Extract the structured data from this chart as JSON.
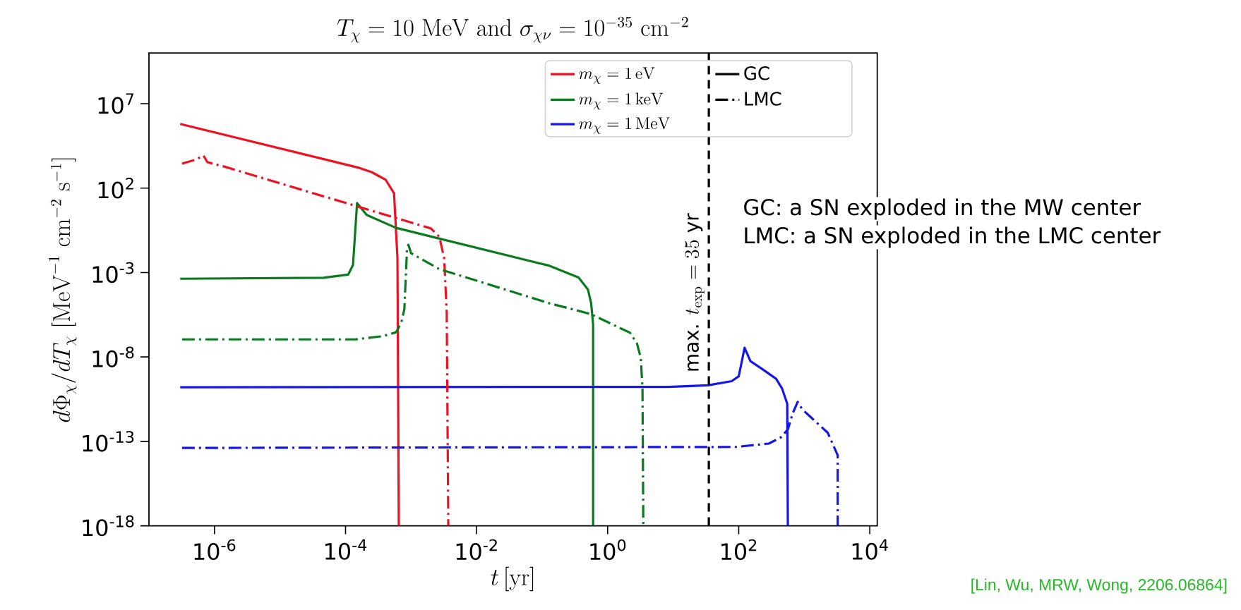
{
  "chart_data": {
    "type": "line",
    "title": "T_\\chi = 10\\ \\mathrm{MeV}\\ \\mathrm{and}\\ \\sigma_{\\chi\\nu} = 10^{-35}\\ \\mathrm{cm}^{-2}",
    "xlabel": "t\\,[\\mathrm{yr}]",
    "ylabel": "d\\Phi_\\chi/dT_\\chi\\ [\\mathrm{MeV}^{-1}\\ \\mathrm{cm}^{-2}\\ \\mathrm{s}^{-1}]",
    "log": "xy",
    "xlim": [
      1e-07,
      13000
    ],
    "ylim": [
      1e-18,
      10000000000.0
    ],
    "xticks": [
      {
        "value": 1e-06,
        "label": "10$^{-6}$"
      },
      {
        "value": 0.0001,
        "label": "10$^{-4}$"
      },
      {
        "value": 0.01,
        "label": "10$^{-2}$"
      },
      {
        "value": 1,
        "label": "10$^{0}$"
      },
      {
        "value": 100,
        "label": "10$^{2}$"
      },
      {
        "value": 10000,
        "label": "10$^{4}$"
      }
    ],
    "yticks": [
      {
        "value": 1e-18,
        "label": "10$^{-18}$"
      },
      {
        "value": 1e-13,
        "label": "10$^{-13}$"
      },
      {
        "value": 1e-08,
        "label": "10$^{-8}$"
      },
      {
        "value": 0.001,
        "label": "10$^{-3}$"
      },
      {
        "value": 100,
        "label": "10$^{2}$"
      },
      {
        "value": 10000000.0,
        "label": "10$^{7}$"
      }
    ],
    "legend": "top right",
    "series": [
      {
        "name": "m_\\chi = 1\\,\\mathrm{eV}",
        "color": "#ee1122",
        "line_style": "solid",
        "x": [
          3e-07,
          0.00016,
          0.00025,
          0.00041,
          0.00055,
          0.00062,
          0.00065
        ],
        "values": [
          630000.0,
          1600,
          890,
          310,
          49,
          0.0071,
          1e-18
        ]
      },
      {
        "name": "m_\\chi = 1\\,\\mathrm{keV}",
        "color": "#0a7a1e",
        "line_style": "solid",
        "x": [
          3e-07,
          4.6e-05,
          0.00011,
          0.00013,
          0.00015,
          0.00021,
          0.00059,
          0.13,
          0.36,
          0.5,
          0.56,
          0.6,
          0.6
        ],
        "values": [
          0.00043,
          0.00049,
          0.00076,
          0.0028,
          13,
          2.6,
          0.44,
          0.0025,
          0.00051,
          0.0001,
          1.5e-05,
          8.3e-07,
          1e-18
        ]
      },
      {
        "name": "m_\\chi = 1\\,\\mathrm{MeV}",
        "color": "#1515ee",
        "line_style": "solid",
        "x": [
          3e-07,
          8.3,
          34,
          78,
          100,
          123,
          151,
          229,
          372,
          457,
          550,
          562
        ],
        "values": [
          1.6e-10,
          1.7e-10,
          2.1e-10,
          3.7e-10,
          7.1e-10,
          3.5e-08,
          5.6e-09,
          1.9e-09,
          5.1e-10,
          1.4e-10,
          1.7e-11,
          1e-18
        ]
      },
      {
        "color": "#ee1122",
        "line_style": "dashdot",
        "x": [
          3.2e-07,
          5.2e-07,
          6.8e-07,
          7.8e-07,
          1.4e-06,
          0.002,
          0.0027,
          0.0032,
          0.0035,
          0.0037
        ],
        "values": [
          2800,
          4900,
          8500,
          3400,
          1900,
          0.41,
          0.13,
          0.0071,
          4.4e-06,
          1e-18
        ]
      },
      {
        "color": "#0a7a1e",
        "line_style": "dashdot",
        "x": [
          3.2e-07,
          0.00014,
          0.00037,
          0.00059,
          0.00071,
          0.00079,
          0.00087,
          0.00091,
          0.001,
          0.0027,
          0.13,
          0.55,
          2.2,
          2.8,
          3.2,
          3.4,
          3.5
        ],
        "values": [
          1.1e-07,
          1.1e-07,
          1.7e-07,
          2.9e-07,
          1.1e-06,
          6.6e-06,
          0.03,
          0.044,
          0.014,
          0.0016,
          1.5e-05,
          3.5e-06,
          2.7e-07,
          6.3e-08,
          9.1e-09,
          1.4e-10,
          1e-18
        ]
      },
      {
        "color": "#1515ee",
        "line_style": "dashdot",
        "x": [
          3.2e-07,
          91,
          288,
          437,
          562,
          661,
          794,
          933,
          2290,
          3240,
          3240
        ],
        "values": [
          4.1e-14,
          4.7e-14,
          7.4e-14,
          1.7e-13,
          5.1e-13,
          4.2e-12,
          2.2e-11,
          7.9e-12,
          3.2e-13,
          1.5e-14,
          1e-18
        ]
      }
    ],
    "ref_lines": [
      {
        "axis": "x",
        "value": 35,
        "label": "\\mbox{max. }t_{\\mathrm{exp}} = 35\\ \\mbox{yr}",
        "color": "#000000",
        "line_style": "dashed"
      }
    ],
    "annotations": [
      "GC",
      "LMC",
      "GC: a SN exploded in the MW center",
      "LMC: a SN exploded in the LMC center",
      "[Lin, Wu, MRW, Wong, 2206.06864]"
    ]
  }
}
